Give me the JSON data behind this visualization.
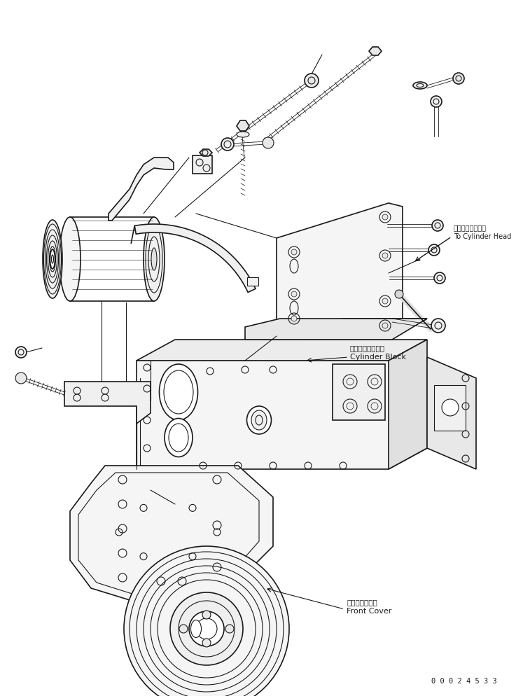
{
  "bg_color": "#ffffff",
  "line_color": "#1a1a1a",
  "fig_width": 7.57,
  "fig_height": 9.94,
  "dpi": 100,
  "ann_cyl_head_jp": "シリンダヘッドヘ",
  "ann_cyl_head_en": "To Cylinder Head",
  "ann_cyl_block_jp": "シリンダブロック",
  "ann_cyl_block_en": "Cylinder Block",
  "ann_front_cover_jp": "フロントカバー",
  "ann_front_cover_en": "Front Cover",
  "doc_number": "0 0 0 2 4 5 3 3"
}
